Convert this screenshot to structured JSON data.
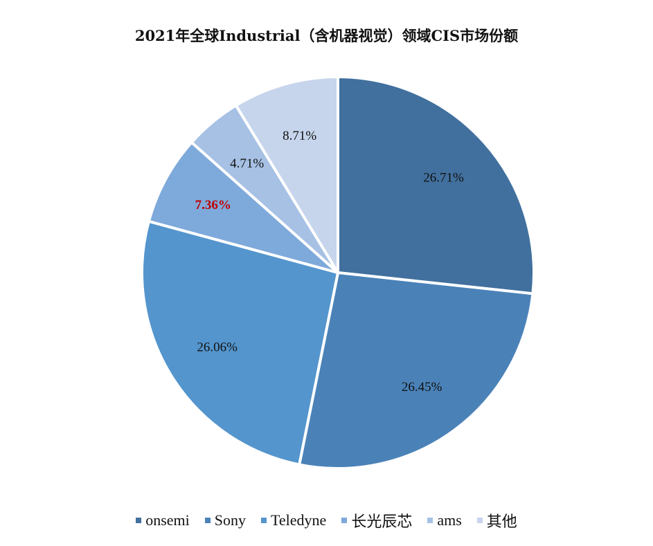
{
  "chart_data": {
    "type": "pie",
    "title": "2021年全球Industrial（含机器视觉）领域CIS市场份额",
    "slices": [
      {
        "name": "onsemi",
        "value": 26.71,
        "label": "26.71%",
        "color": "#41709e",
        "highlight": false
      },
      {
        "name": "Sony",
        "value": 26.45,
        "label": "26.45%",
        "color": "#4a82b8",
        "highlight": false
      },
      {
        "name": "Teledyne",
        "value": 26.06,
        "label": "26.06%",
        "color": "#5495cd",
        "highlight": false
      },
      {
        "name": "长光辰芯",
        "value": 7.36,
        "label": "7.36%",
        "color": "#7ea9db",
        "highlight": true
      },
      {
        "name": "ams",
        "value": 4.71,
        "label": "4.71%",
        "color": "#a6c1e4",
        "highlight": false
      },
      {
        "name": "其他",
        "value": 8.71,
        "label": "8.71%",
        "color": "#c6d5ec",
        "highlight": false
      }
    ],
    "start_angle": "12 o'clock",
    "direction": "clockwise",
    "legend_position": "bottom",
    "highlight_label_color": "#c00000"
  }
}
